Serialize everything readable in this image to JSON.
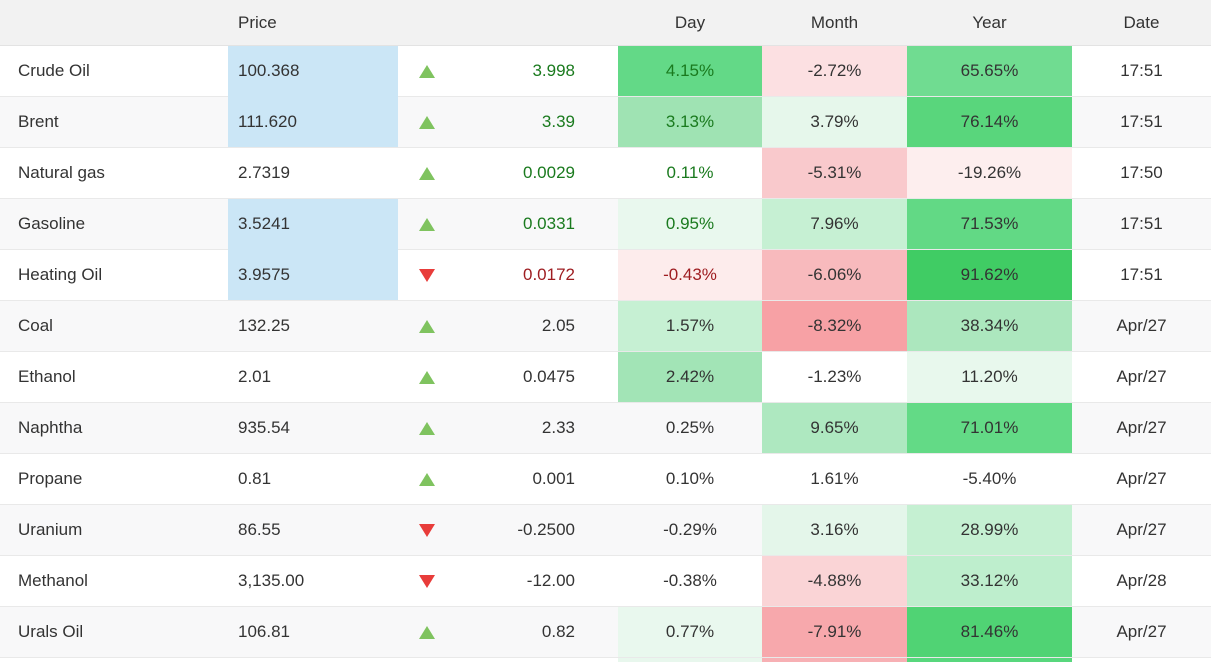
{
  "colors": {
    "positive_text": "#1a7a1e",
    "negative_text": "#9e1d21",
    "up_arrow": "#7fc35f",
    "down_arrow": "#e83c3a",
    "price_highlight": "#cbe6f6",
    "header_bg": "#f2f2f2",
    "row_alt_bg": "#f8f8f9",
    "default_text": "#333333"
  },
  "table": {
    "headers": {
      "name": "",
      "price": "Price",
      "arrow": "",
      "change": "",
      "day": "Day",
      "month": "Month",
      "year": "Year",
      "date": "Date"
    },
    "rows": [
      {
        "name": "Crude Oil",
        "price": "100.368",
        "price_bg": "#cbe6f6",
        "direction": "up",
        "change": "3.998",
        "change_color": "pos",
        "day": {
          "text": "4.15%",
          "bg": "#63d987",
          "color": "pos"
        },
        "month": {
          "text": "-2.72%",
          "bg": "#fce0e2"
        },
        "year": {
          "text": "65.65%",
          "bg": "#70dc91"
        },
        "date": "17:51"
      },
      {
        "name": "Brent",
        "price": "111.620",
        "price_bg": "#cbe6f6",
        "direction": "up",
        "change": "3.39",
        "change_color": "pos",
        "day": {
          "text": "3.13%",
          "bg": "#9fe3b3",
          "color": "pos"
        },
        "month": {
          "text": "3.79%",
          "bg": "#e6f7eb"
        },
        "year": {
          "text": "76.14%",
          "bg": "#59d67c"
        },
        "date": "17:51"
      },
      {
        "name": "Natural gas",
        "price": "2.7319",
        "price_bg": null,
        "direction": "up",
        "change": "0.0029",
        "change_color": "pos",
        "day": {
          "text": "0.11%",
          "bg": null,
          "color": "pos"
        },
        "month": {
          "text": "-5.31%",
          "bg": "#f9c9cc"
        },
        "year": {
          "text": "-19.26%",
          "bg": "#fdeeee"
        },
        "date": "17:50"
      },
      {
        "name": "Gasoline",
        "price": "3.5241",
        "price_bg": "#cbe6f6",
        "direction": "up",
        "change": "0.0331",
        "change_color": "pos",
        "day": {
          "text": "0.95%",
          "bg": "#e9f8ee",
          "color": "pos"
        },
        "month": {
          "text": "7.96%",
          "bg": "#c6f0d3"
        },
        "year": {
          "text": "71.53%",
          "bg": "#62d985"
        },
        "date": "17:51"
      },
      {
        "name": "Heating Oil",
        "price": "3.9575",
        "price_bg": "#cbe6f6",
        "direction": "down",
        "change": "0.0172",
        "change_color": "neg",
        "day": {
          "text": "-0.43%",
          "bg": "#fdecec",
          "color": "neg"
        },
        "month": {
          "text": "-6.06%",
          "bg": "#f8babd"
        },
        "year": {
          "text": "91.62%",
          "bg": "#40cc64"
        },
        "date": "17:51"
      },
      {
        "name": "Coal",
        "price": "132.25",
        "price_bg": null,
        "direction": "up",
        "change": "2.05",
        "change_color": null,
        "day": {
          "text": "1.57%",
          "bg": "#c6f0d3",
          "color": null
        },
        "month": {
          "text": "-8.32%",
          "bg": "#f7a1a5"
        },
        "year": {
          "text": "38.34%",
          "bg": "#ace7be"
        },
        "date": "Apr/27"
      },
      {
        "name": "Ethanol",
        "price": "2.01",
        "price_bg": null,
        "direction": "up",
        "change": "0.0475",
        "change_color": null,
        "day": {
          "text": "2.42%",
          "bg": "#a2e4b6",
          "color": null
        },
        "month": {
          "text": "-1.23%",
          "bg": null
        },
        "year": {
          "text": "11.20%",
          "bg": "#e8f8ed"
        },
        "date": "Apr/27"
      },
      {
        "name": "Naphtha",
        "price": "935.54",
        "price_bg": null,
        "direction": "up",
        "change": "2.33",
        "change_color": null,
        "day": {
          "text": "0.25%",
          "bg": null,
          "color": null
        },
        "month": {
          "text": "9.65%",
          "bg": "#aee8c0"
        },
        "year": {
          "text": "71.01%",
          "bg": "#63da86"
        },
        "date": "Apr/27"
      },
      {
        "name": "Propane",
        "price": "0.81",
        "price_bg": null,
        "direction": "up",
        "change": "0.001",
        "change_color": null,
        "day": {
          "text": "0.10%",
          "bg": null,
          "color": null
        },
        "month": {
          "text": "1.61%",
          "bg": null
        },
        "year": {
          "text": "-5.40%",
          "bg": null
        },
        "date": "Apr/27"
      },
      {
        "name": "Uranium",
        "price": "86.55",
        "price_bg": null,
        "direction": "down",
        "change": "-0.2500",
        "change_color": null,
        "day": {
          "text": "-0.29%",
          "bg": null,
          "color": null
        },
        "month": {
          "text": "3.16%",
          "bg": "#e4f6ea"
        },
        "year": {
          "text": "28.99%",
          "bg": "#c5f0d2"
        },
        "date": "Apr/27"
      },
      {
        "name": "Methanol",
        "price": "3,135.00",
        "price_bg": null,
        "direction": "down",
        "change": "-12.00",
        "change_color": null,
        "day": {
          "text": "-0.38%",
          "bg": null,
          "color": null
        },
        "month": {
          "text": "-4.88%",
          "bg": "#fad4d6"
        },
        "year": {
          "text": "33.12%",
          "bg": "#beeecd"
        },
        "date": "Apr/28"
      },
      {
        "name": "Urals Oil",
        "price": "106.81",
        "price_bg": null,
        "direction": "up",
        "change": "0.82",
        "change_color": null,
        "day": {
          "text": "0.77%",
          "bg": "#e9f8ee",
          "color": null
        },
        "month": {
          "text": "-7.91%",
          "bg": "#f7a8ac"
        },
        "year": {
          "text": "81.46%",
          "bg": "#50d374"
        },
        "date": "Apr/27"
      }
    ],
    "partial_row": {
      "day_bg": "#e8f7ed",
      "month_bg": "#f7b0b4",
      "year_bg": "#58d77d"
    }
  }
}
